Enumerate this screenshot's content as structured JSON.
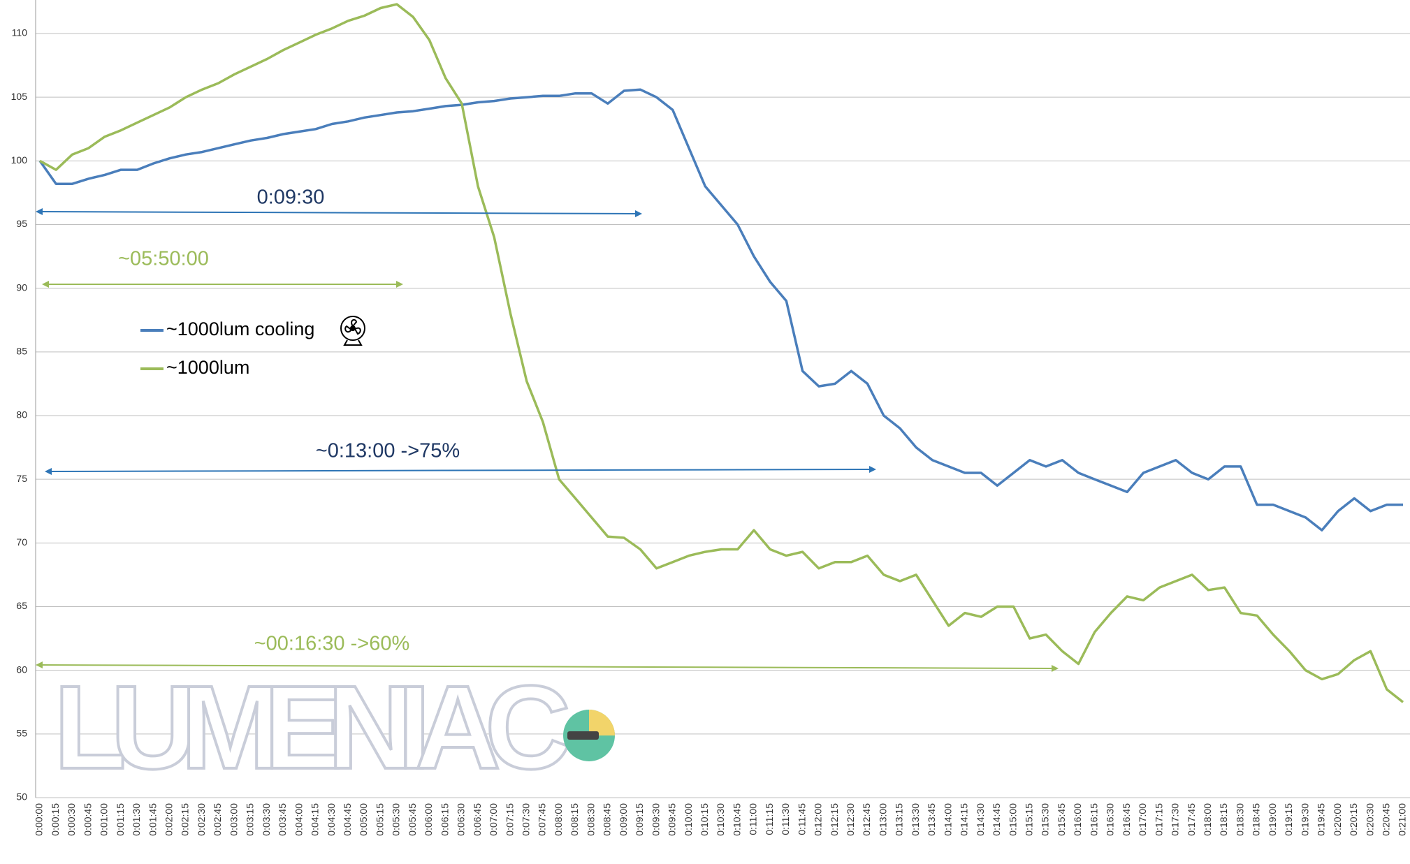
{
  "chart_data": {
    "type": "line",
    "categories": [
      "0:00:00",
      "0:00:15",
      "0:00:30",
      "0:00:45",
      "0:01:00",
      "0:01:15",
      "0:01:30",
      "0:01:45",
      "0:02:00",
      "0:02:15",
      "0:02:30",
      "0:02:45",
      "0:03:00",
      "0:03:15",
      "0:03:30",
      "0:03:45",
      "0:04:00",
      "0:04:15",
      "0:04:30",
      "0:04:45",
      "0:05:00",
      "0:05:15",
      "0:05:30",
      "0:05:45",
      "0:06:00",
      "0:06:15",
      "0:06:30",
      "0:06:45",
      "0:07:00",
      "0:07:15",
      "0:07:30",
      "0:07:45",
      "0:08:00",
      "0:08:15",
      "0:08:30",
      "0:08:45",
      "0:09:00",
      "0:09:15",
      "0:09:30",
      "0:09:45",
      "0:10:00",
      "0:10:15",
      "0:10:30",
      "0:10:45",
      "0:11:00",
      "0:11:15",
      "0:11:30",
      "0:11:45",
      "0:12:00",
      "0:12:15",
      "0:12:30",
      "0:12:45",
      "0:13:00",
      "0:13:15",
      "0:13:30",
      "0:13:45",
      "0:14:00",
      "0:14:15",
      "0:14:30",
      "0:14:45",
      "0:15:00",
      "0:15:15",
      "0:15:30",
      "0:15:45",
      "0:16:00",
      "0:16:15",
      "0:16:30",
      "0:16:45",
      "0:17:00",
      "0:17:15",
      "0:17:30",
      "0:17:45",
      "0:18:00",
      "0:18:15",
      "0:18:30",
      "0:18:45",
      "0:19:00",
      "0:19:15",
      "0:19:30",
      "0:19:45",
      "0:20:00",
      "0:20:15",
      "0:20:30",
      "0:20:45",
      "0:21:00"
    ],
    "series": [
      {
        "name": "~1000lum cooling",
        "color": "#4a7ebb",
        "values": [
          100,
          98.2,
          98.2,
          98.6,
          98.9,
          99.3,
          99.3,
          99.8,
          100.2,
          100.5,
          100.7,
          101,
          101.3,
          101.6,
          101.8,
          102.1,
          102.3,
          102.5,
          102.9,
          103.1,
          103.4,
          103.6,
          103.8,
          103.9,
          104.1,
          104.3,
          104.4,
          104.6,
          104.7,
          104.9,
          105,
          105.1,
          105.1,
          105.3,
          105.3,
          104.5,
          105.5,
          105.6,
          105,
          104,
          101,
          98,
          96.5,
          95,
          92.5,
          90.5,
          89,
          83.5,
          82.3,
          82.5,
          83.5,
          82.5,
          80,
          79,
          77.5,
          76.5,
          76,
          75.5,
          75.5,
          74.5,
          75.5,
          76.5,
          76,
          76.5,
          75.5,
          75,
          74.5,
          74,
          75.5,
          76,
          76.5,
          75.5,
          75,
          76,
          76,
          73,
          73,
          72.5,
          72,
          71,
          72.5,
          73.5,
          72.5,
          73,
          73
        ]
      },
      {
        "name": "~1000lum",
        "color": "#9bbb59",
        "values": [
          100,
          99.3,
          100.5,
          101,
          101.9,
          102.4,
          103,
          103.6,
          104.2,
          105,
          105.6,
          106.1,
          106.8,
          107.4,
          108,
          108.7,
          109.3,
          109.9,
          110.4,
          111,
          111.4,
          112,
          112.3,
          111.3,
          109.5,
          106.5,
          104.5,
          98,
          94,
          88,
          82.7,
          79.5,
          75,
          73.5,
          72,
          70.5,
          70.4,
          69.5,
          68,
          68.5,
          69,
          69.3,
          69.5,
          69.5,
          71,
          69.5,
          69,
          69.3,
          68,
          68.5,
          68.5,
          69,
          67.5,
          67,
          67.5,
          65.5,
          63.5,
          64.5,
          64.2,
          65,
          65,
          62.5,
          62.8,
          61.5,
          60.5,
          63,
          64.5,
          65.8,
          65.5,
          66.5,
          67,
          67.5,
          66.3,
          66.5,
          64.5,
          64.3,
          62.8,
          61.5,
          60,
          59.3,
          59.7,
          60.8,
          61.5,
          58.5,
          57.5
        ]
      }
    ],
    "ylim": [
      50,
      110
    ],
    "yticks": [
      50,
      55,
      60,
      65,
      70,
      75,
      80,
      85,
      90,
      95,
      100,
      105,
      110
    ],
    "grid": true,
    "annotations": [
      "0:09:30",
      "~05:50:00",
      "~0:13:00 ->75%",
      "~00:16:30 ->60%"
    ],
    "watermark": "LUMENIAC"
  }
}
